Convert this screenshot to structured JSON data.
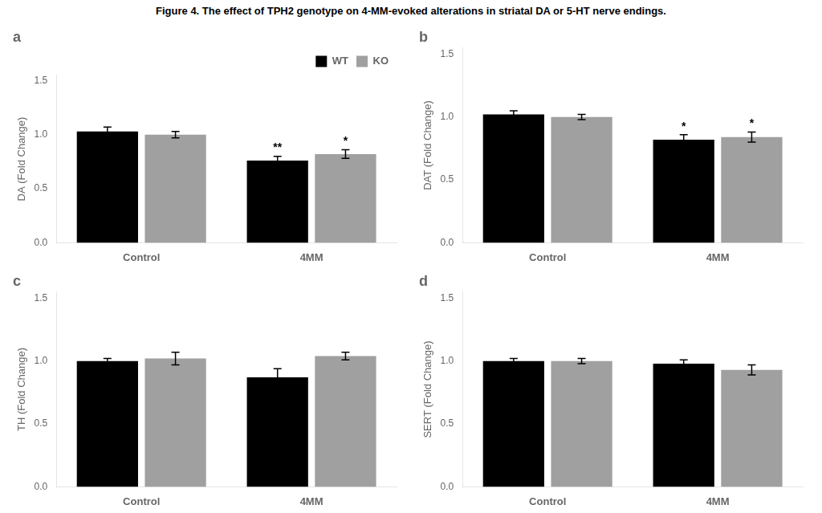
{
  "title": "Figure 4. The effect of TPH2 genotype on 4-MM-evoked alterations in striatal DA or 5-HT nerve endings.",
  "chart_data": [
    {
      "type": "bar",
      "title": "a",
      "ylabel": "DA (Fold Change)",
      "categories": [
        "Control",
        "4MM"
      ],
      "series": [
        {
          "name": "WT",
          "color": "#000000",
          "values": [
            1.03,
            0.76
          ],
          "errors": [
            0.04,
            0.04
          ],
          "annotations": [
            null,
            "**"
          ]
        },
        {
          "name": "KO",
          "color": "#a0a0a0",
          "values": [
            1.0,
            0.82
          ],
          "errors": [
            0.03,
            0.04
          ],
          "annotations": [
            null,
            "*"
          ]
        }
      ],
      "ylim": [
        0.0,
        1.55
      ],
      "yticks": [
        {
          "value": 0.0,
          "label": "0.0"
        },
        {
          "value": 0.5,
          "label": "0.5"
        },
        {
          "value": 1.0,
          "label": "1.0"
        },
        {
          "value": 1.5,
          "label": "1.5"
        }
      ],
      "grid": false,
      "legend": "upper right"
    },
    {
      "type": "bar",
      "title": "b",
      "ylabel": "DAT (Fold Change)",
      "categories": [
        "Control",
        "4MM"
      ],
      "series": [
        {
          "color": "#000000",
          "values": [
            1.02,
            0.82
          ],
          "errors": [
            0.03,
            0.04
          ],
          "annotations": [
            null,
            "*"
          ]
        },
        {
          "color": "#a0a0a0",
          "values": [
            1.0,
            0.84
          ],
          "errors": [
            0.02,
            0.04
          ],
          "annotations": [
            null,
            "*"
          ]
        }
      ],
      "ylim": [
        0.0,
        1.55
      ],
      "yticks": [
        {
          "value": 0.0,
          "label": "0.0"
        },
        {
          "value": 0.5,
          "label": "0.5"
        },
        {
          "value": 1.0,
          "label": "1.0"
        },
        {
          "value": 1.5,
          "label": "1.5"
        }
      ],
      "grid": false
    },
    {
      "type": "bar",
      "title": "c",
      "ylabel": "TH (Fold Change)",
      "categories": [
        "Control",
        "4MM"
      ],
      "series": [
        {
          "color": "#000000",
          "values": [
            1.0,
            0.87
          ],
          "errors": [
            0.02,
            0.07
          ]
        },
        {
          "color": "#a0a0a0",
          "values": [
            1.02,
            1.04
          ],
          "errors": [
            0.05,
            0.03
          ]
        }
      ],
      "ylim": [
        0.0,
        1.55
      ],
      "yticks": [
        {
          "value": 0.0,
          "label": "0.0"
        },
        {
          "value": 0.5,
          "label": "0.5"
        },
        {
          "value": 1.0,
          "label": "1.0"
        },
        {
          "value": 1.5,
          "label": "1.5"
        }
      ],
      "grid": false
    },
    {
      "type": "bar",
      "title": "d",
      "ylabel": "SERT (Fold Change)",
      "categories": [
        "Control",
        "4MM"
      ],
      "series": [
        {
          "color": "#000000",
          "values": [
            1.0,
            0.98
          ],
          "errors": [
            0.02,
            0.03
          ]
        },
        {
          "color": "#a0a0a0",
          "values": [
            1.0,
            0.93
          ],
          "errors": [
            0.02,
            0.04
          ]
        }
      ],
      "ylim": [
        0.0,
        1.55
      ],
      "yticks": [
        {
          "value": 0.0,
          "label": "0.0"
        },
        {
          "value": 0.5,
          "label": "0.5"
        },
        {
          "value": 1.0,
          "label": "1.0"
        },
        {
          "value": 1.5,
          "label": "1.5"
        }
      ],
      "grid": false
    }
  ]
}
